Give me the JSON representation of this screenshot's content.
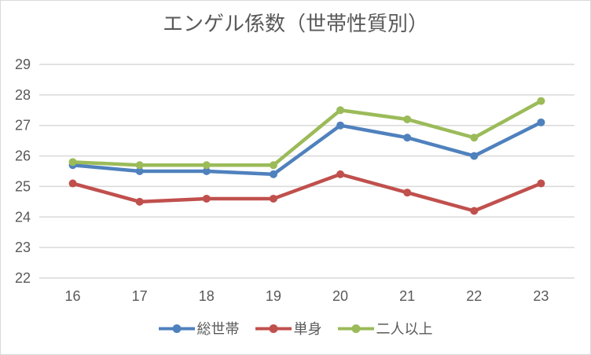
{
  "frame": {
    "background": "#FFFFFF",
    "border_color": "#D9D9D9"
  },
  "chart_data": {
    "type": "line",
    "title": "エンゲル係数（世帯性質別）",
    "title_color": "#595959",
    "categories": [
      "16",
      "17",
      "18",
      "19",
      "20",
      "21",
      "22",
      "23"
    ],
    "series": [
      {
        "name": "総世帯",
        "color": "#4F81BD",
        "values": [
          25.7,
          25.5,
          25.5,
          25.4,
          27.0,
          26.6,
          26.0,
          27.1
        ]
      },
      {
        "name": "単身",
        "color": "#C0504D",
        "values": [
          25.1,
          24.5,
          24.6,
          24.6,
          25.4,
          24.8,
          24.2,
          25.1
        ]
      },
      {
        "name": "二人以上",
        "color": "#9BBB59",
        "values": [
          25.8,
          25.7,
          25.7,
          25.7,
          27.5,
          27.2,
          26.6,
          27.8
        ]
      }
    ],
    "xlabel": "",
    "ylabel": "",
    "ylim": [
      22,
      29
    ],
    "y_ticks": [
      29,
      28,
      27,
      26,
      25,
      24,
      23,
      22
    ],
    "grid": true,
    "gridline_color": "#D9D9D9",
    "tick_label_color": "#595959",
    "marker": "circle",
    "legend_position": "bottom"
  }
}
